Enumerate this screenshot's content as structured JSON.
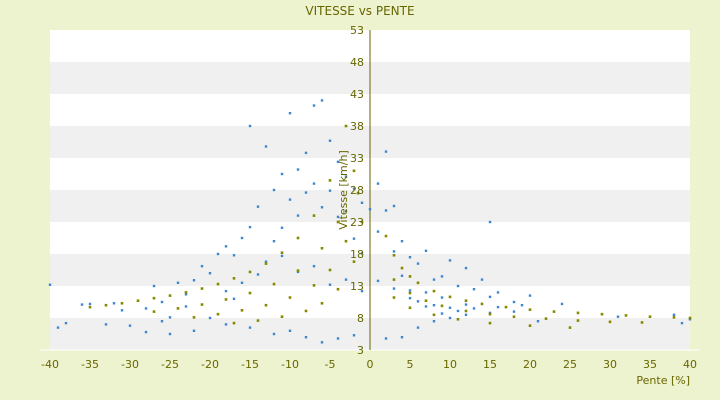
{
  "chart_data": {
    "type": "scatter",
    "title": "VITESSE vs PENTE",
    "xlabel": "Pente [%]",
    "ylabel": "Vitesse [km/h]",
    "xlim": [
      -40,
      40
    ],
    "ylim": [
      3,
      53
    ],
    "x_ticks": [
      "-40",
      "-35",
      "-30",
      "-25",
      "-20",
      "-15",
      "-10",
      "-5",
      "0",
      "5",
      "10",
      "15",
      "20",
      "25",
      "30",
      "35",
      "40"
    ],
    "y_ticks": [
      "3",
      "8",
      "13",
      "18",
      "23",
      "28",
      "33",
      "38",
      "43",
      "48",
      "53"
    ],
    "grid": "horizontal bands",
    "colors": {
      "background": "#eef3cf",
      "plot_band_light": "#ffffff",
      "plot_band_dark": "#f0f0f0",
      "text": "#666600",
      "series_main": "#3b86cf",
      "series_curves": "#888800",
      "axis_line": "#666600"
    },
    "series": [
      {
        "points": [
          [
            -40,
            13.2
          ],
          [
            -39,
            6.5
          ],
          [
            -38,
            7.2
          ],
          [
            -36,
            10.1
          ],
          [
            -35,
            10.2
          ],
          [
            -32,
            10.3
          ],
          [
            -28,
            9.5
          ],
          [
            -27,
            13.0
          ],
          [
            -26,
            10.5
          ],
          [
            -25,
            8.1
          ],
          [
            -24,
            13.5
          ],
          [
            -23,
            11.7
          ],
          [
            -22,
            13.9
          ],
          [
            -21,
            16.1
          ],
          [
            -20,
            15.0
          ],
          [
            -19,
            18.0
          ],
          [
            -18,
            19.2
          ],
          [
            -17,
            17.8
          ],
          [
            -16,
            20.5
          ],
          [
            -15,
            38.0
          ],
          [
            -15,
            22.2
          ],
          [
            -14,
            25.4
          ],
          [
            -13,
            34.8
          ],
          [
            -12,
            28.0
          ],
          [
            -12,
            20.0
          ],
          [
            -11,
            30.5
          ],
          [
            -11,
            22.1
          ],
          [
            -10,
            40.0
          ],
          [
            -10,
            26.5
          ],
          [
            -9,
            31.2
          ],
          [
            -9,
            24.0
          ],
          [
            -8,
            33.8
          ],
          [
            -8,
            27.6
          ],
          [
            -7,
            41.2
          ],
          [
            -7,
            29.0
          ],
          [
            -6,
            42.0
          ],
          [
            -6,
            25.3
          ],
          [
            -5,
            35.7
          ],
          [
            -5,
            27.9
          ],
          [
            -4,
            32.4
          ],
          [
            -4,
            23.8
          ],
          [
            -3,
            30.1
          ],
          [
            -3,
            24.7
          ],
          [
            -2,
            28.2
          ],
          [
            -2,
            20.4
          ],
          [
            -1,
            26.0
          ],
          [
            -1,
            18.1
          ],
          [
            0,
            25.0
          ],
          [
            1,
            29.0
          ],
          [
            1,
            21.5
          ],
          [
            2,
            34.0
          ],
          [
            2,
            24.8
          ],
          [
            3,
            25.5
          ],
          [
            3,
            18.4
          ],
          [
            4,
            20.0
          ],
          [
            4,
            14.6
          ],
          [
            5,
            17.5
          ],
          [
            5,
            12.3
          ],
          [
            6,
            16.5
          ],
          [
            6,
            10.6
          ],
          [
            7,
            18.5
          ],
          [
            7,
            12.0
          ],
          [
            8,
            14.0
          ],
          [
            8,
            10.0
          ],
          [
            9,
            14.5
          ],
          [
            9,
            11.2
          ],
          [
            10,
            17.0
          ],
          [
            10,
            9.6
          ],
          [
            11,
            13.0
          ],
          [
            12,
            15.8
          ],
          [
            12,
            10.1
          ],
          [
            13,
            12.5
          ],
          [
            14,
            14.0
          ],
          [
            15,
            23.0
          ],
          [
            15,
            11.3
          ],
          [
            16,
            12.0
          ],
          [
            18,
            10.5
          ],
          [
            20,
            11.5
          ],
          [
            -20,
            8.0
          ],
          [
            -18,
            7.0
          ],
          [
            -15,
            6.5
          ],
          [
            -12,
            5.5
          ],
          [
            -10,
            6.0
          ],
          [
            -8,
            5.0
          ],
          [
            -6,
            4.2
          ],
          [
            -4,
            4.8
          ],
          [
            -2,
            5.3
          ],
          [
            2,
            4.8
          ],
          [
            4,
            5.0
          ],
          [
            6,
            6.5
          ],
          [
            8,
            7.5
          ],
          [
            10,
            8.0
          ],
          [
            12,
            8.5
          ],
          [
            15,
            8.8
          ],
          [
            18,
            9.0
          ],
          [
            21,
            7.5
          ],
          [
            -30,
            6.8
          ],
          [
            -28,
            5.8
          ],
          [
            -25,
            5.5
          ],
          [
            -22,
            6.0
          ],
          [
            -17,
            11.0
          ],
          [
            -14,
            14.8
          ],
          [
            -13,
            16.8
          ],
          [
            -11,
            17.7
          ],
          [
            -9,
            15.2
          ],
          [
            -7,
            16.1
          ],
          [
            -5,
            13.2
          ],
          [
            -3,
            14.0
          ],
          [
            -1,
            12.2
          ],
          [
            1,
            13.8
          ],
          [
            3,
            12.6
          ],
          [
            5,
            11.1
          ],
          [
            7,
            9.8
          ],
          [
            9,
            8.7
          ],
          [
            11,
            9.1
          ],
          [
            13,
            9.5
          ],
          [
            16,
            9.7
          ],
          [
            19,
            10.0
          ],
          [
            24,
            10.2
          ],
          [
            31,
            8.2
          ],
          [
            -16,
            13.5
          ],
          [
            -18,
            12.2
          ],
          [
            -23,
            9.8
          ],
          [
            -26,
            7.5
          ],
          [
            -31,
            9.2
          ],
          [
            -33,
            7.0
          ],
          [
            38,
            8.5
          ],
          [
            40,
            7.8
          ],
          [
            39,
            7.2
          ]
        ]
      },
      {
        "points": [
          [
            -35,
            9.7
          ],
          [
            -33,
            10.0
          ],
          [
            -31,
            10.3
          ],
          [
            -29,
            10.7
          ],
          [
            -27,
            11.1
          ],
          [
            -25,
            11.5
          ],
          [
            -23,
            12.0
          ],
          [
            -21,
            12.6
          ],
          [
            -19,
            13.3
          ],
          [
            -17,
            14.2
          ],
          [
            -15,
            15.2
          ],
          [
            -13,
            16.5
          ],
          [
            -11,
            18.2
          ],
          [
            -9,
            20.5
          ],
          [
            -7,
            24.0
          ],
          [
            -5,
            29.5
          ],
          [
            -3,
            38.0
          ],
          [
            -27,
            9.0
          ],
          [
            -24,
            9.5
          ],
          [
            -21,
            10.1
          ],
          [
            -18,
            10.9
          ],
          [
            -15,
            11.9
          ],
          [
            -12,
            13.3
          ],
          [
            -9,
            15.4
          ],
          [
            -6,
            18.9
          ],
          [
            -4,
            23.0
          ],
          [
            -2,
            31.0
          ],
          [
            -22,
            8.1
          ],
          [
            -19,
            8.6
          ],
          [
            -16,
            9.2
          ],
          [
            -13,
            10.0
          ],
          [
            -10,
            11.2
          ],
          [
            -7,
            13.1
          ],
          [
            -5,
            15.5
          ],
          [
            -3,
            20.0
          ],
          [
            -1.5,
            27.5
          ],
          [
            -17,
            7.2
          ],
          [
            -14,
            7.6
          ],
          [
            -11,
            8.2
          ],
          [
            -8,
            9.1
          ],
          [
            -6,
            10.3
          ],
          [
            -4,
            12.5
          ],
          [
            -2,
            16.8
          ],
          [
            -1,
            23.0
          ],
          [
            2,
            20.8
          ],
          [
            3,
            17.8
          ],
          [
            4,
            15.8
          ],
          [
            5,
            14.5
          ],
          [
            6,
            13.5
          ],
          [
            8,
            12.2
          ],
          [
            10,
            11.3
          ],
          [
            12,
            10.7
          ],
          [
            14,
            10.2
          ],
          [
            17,
            9.7
          ],
          [
            20,
            9.3
          ],
          [
            23,
            9.0
          ],
          [
            26,
            8.8
          ],
          [
            29,
            8.6
          ],
          [
            32,
            8.4
          ],
          [
            35,
            8.2
          ],
          [
            38,
            8.1
          ],
          [
            40,
            8.0
          ],
          [
            3,
            14.0
          ],
          [
            5,
            11.9
          ],
          [
            7,
            10.7
          ],
          [
            9,
            9.9
          ],
          [
            12,
            9.1
          ],
          [
            15,
            8.6
          ],
          [
            18,
            8.2
          ],
          [
            22,
            7.9
          ],
          [
            26,
            7.6
          ],
          [
            30,
            7.4
          ],
          [
            34,
            7.3
          ],
          [
            3,
            11.2
          ],
          [
            5,
            9.6
          ],
          [
            8,
            8.5
          ],
          [
            11,
            7.8
          ],
          [
            15,
            7.2
          ],
          [
            20,
            6.8
          ],
          [
            25,
            6.5
          ]
        ]
      }
    ]
  }
}
